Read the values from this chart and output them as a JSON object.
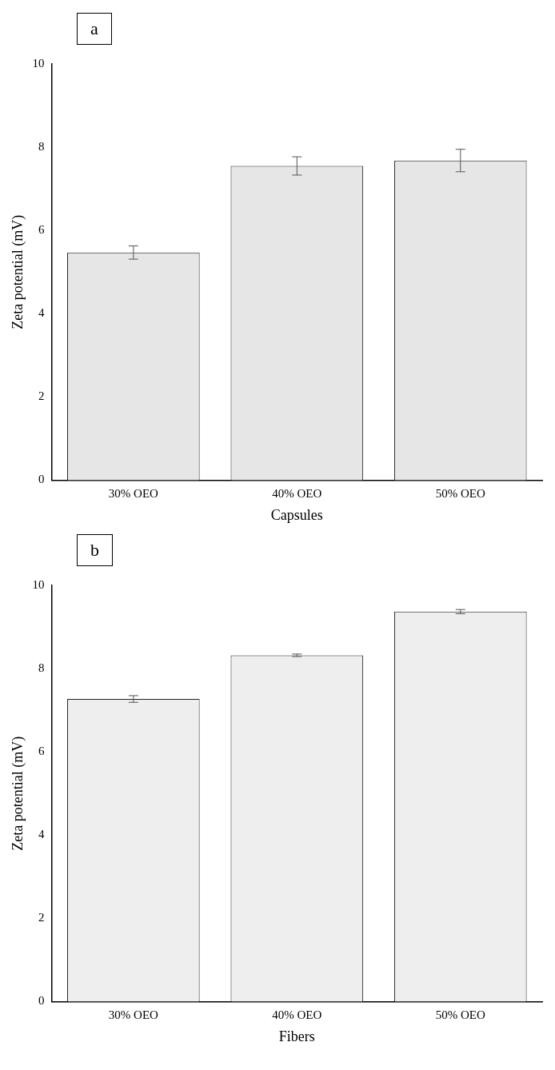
{
  "chart_data": [
    {
      "type": "bar",
      "annotations": [
        "a"
      ],
      "xlabel": "Capsules",
      "ylabel": "Zeta potential (mV)",
      "categories": [
        "30% OEO",
        "40% OEO",
        "50% OEO"
      ],
      "values": [
        5.47,
        7.55,
        7.68
      ],
      "errors": [
        0.16,
        0.22,
        0.27
      ],
      "color": "#e6e6e6",
      "ylim": [
        0,
        10
      ],
      "yticks": [
        0,
        2,
        4,
        6,
        8,
        10
      ],
      "grid": false,
      "legend": false
    },
    {
      "type": "bar",
      "annotations": [
        "b"
      ],
      "xlabel": "Fibers",
      "ylabel": "Zeta potential (mV)",
      "categories": [
        "30% OEO",
        "40% OEO",
        "50% OEO"
      ],
      "values": [
        7.27,
        8.32,
        9.37
      ],
      "errors": [
        0.08,
        0.03,
        0.05
      ],
      "color": "#eeeeee",
      "ylim": [
        0,
        10
      ],
      "yticks": [
        0,
        2,
        4,
        6,
        8,
        10
      ],
      "grid": false,
      "legend": false
    }
  ]
}
